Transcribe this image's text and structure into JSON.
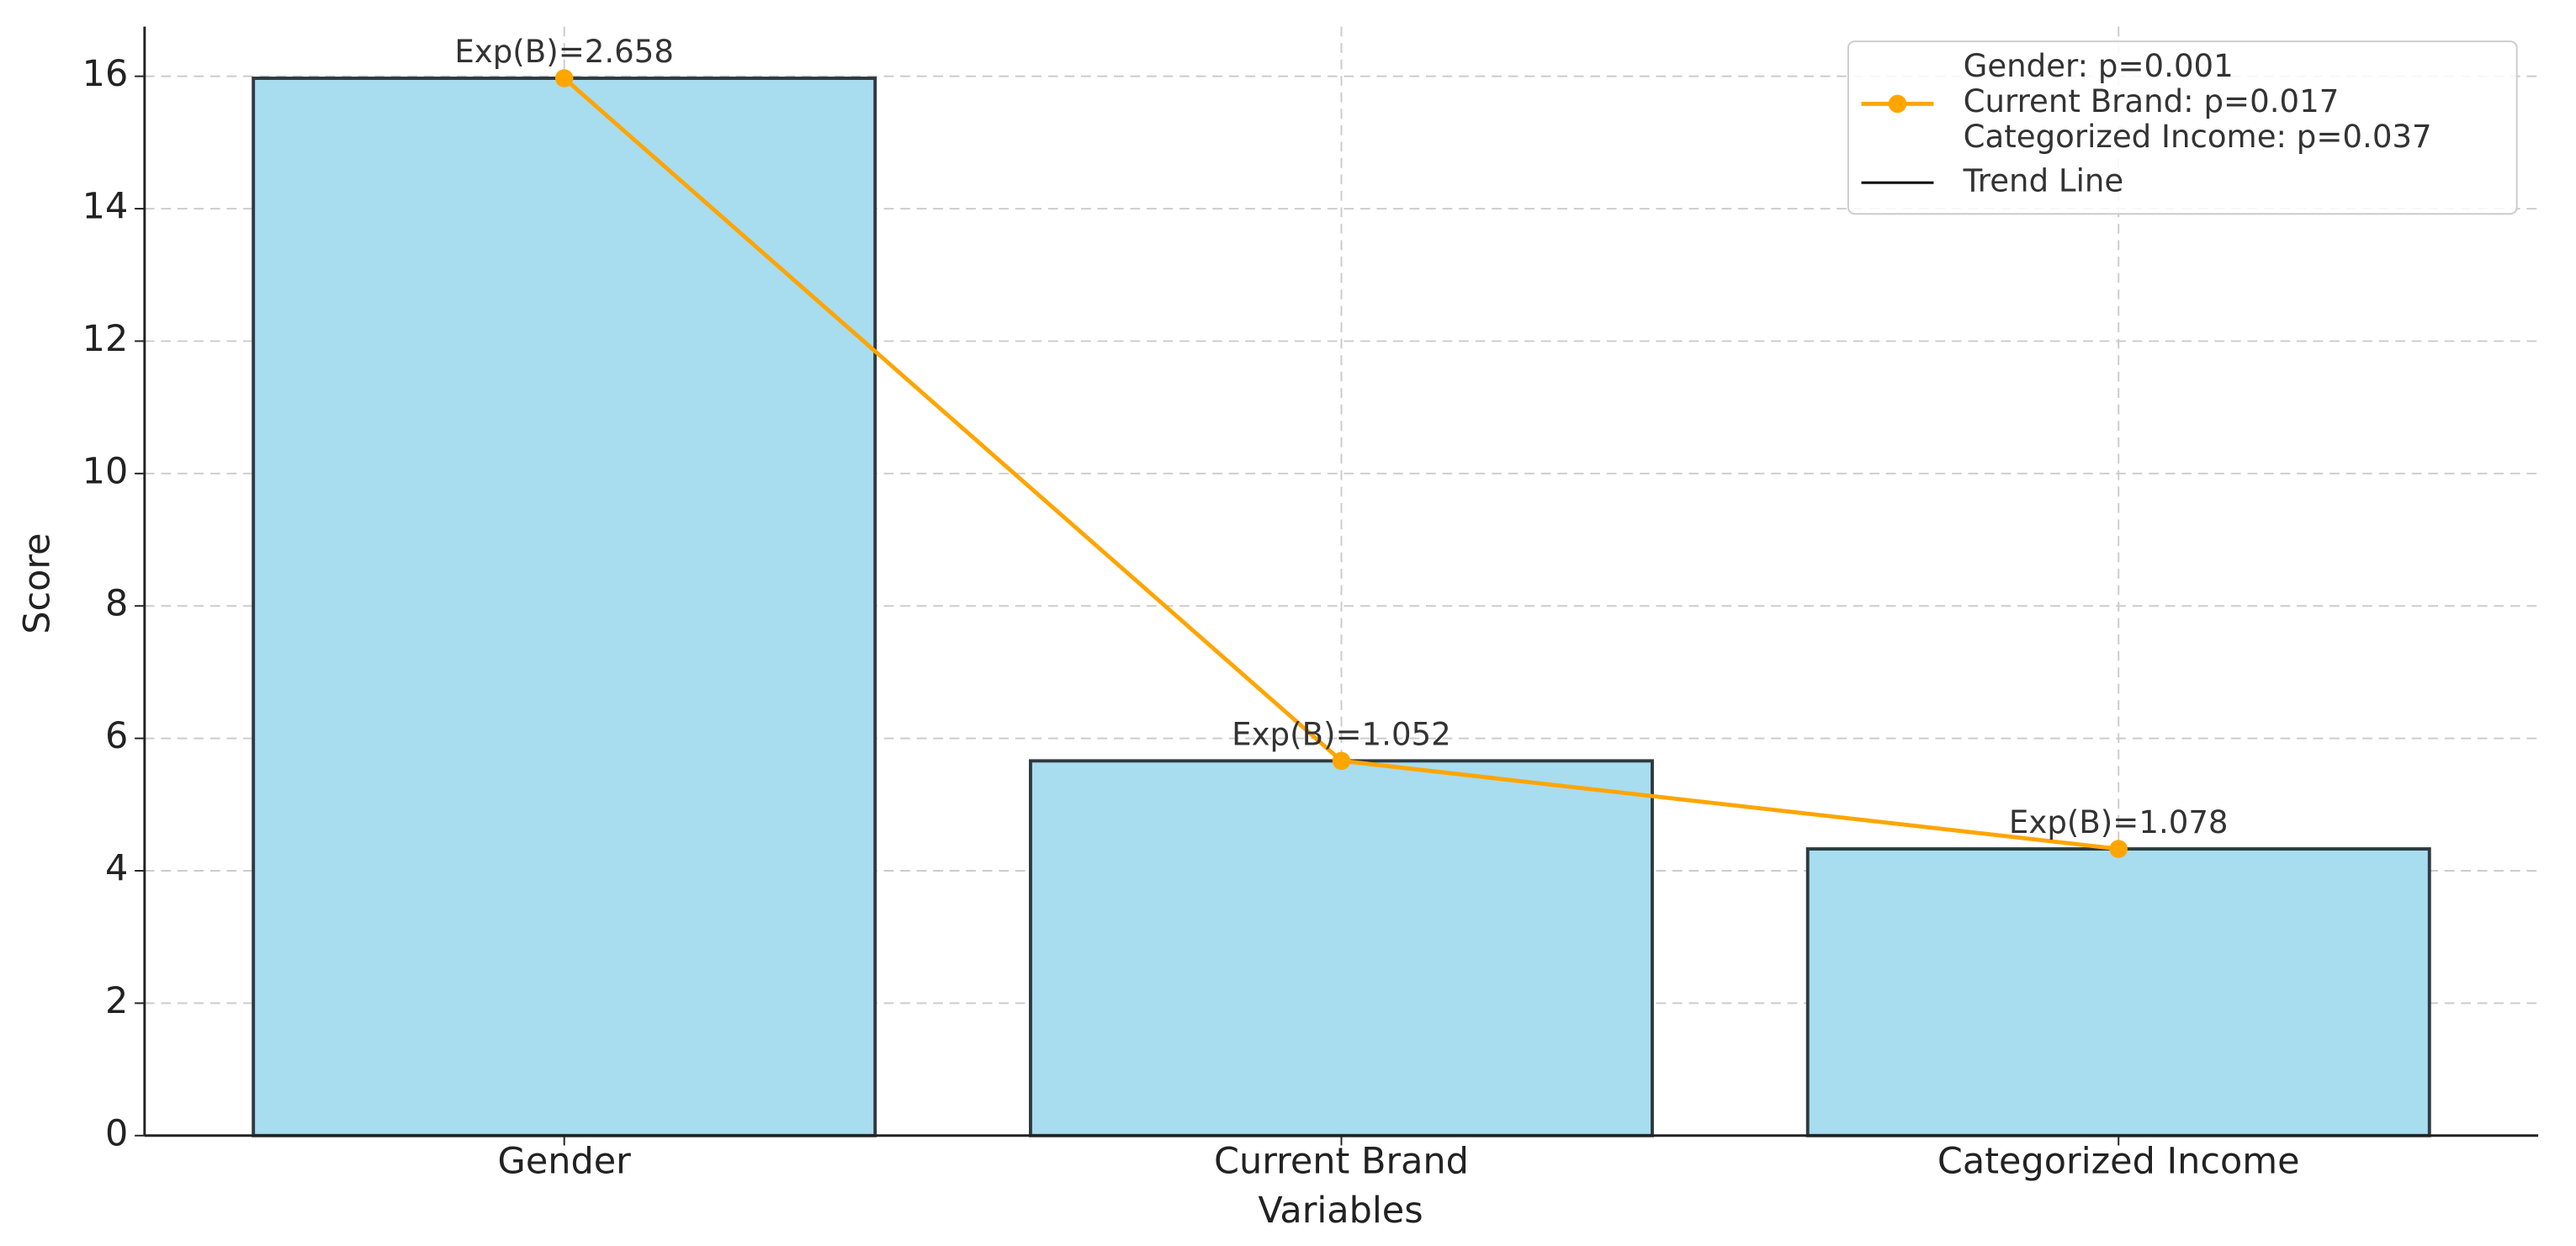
{
  "chart_data": {
    "type": "bar",
    "categories": [
      "Gender",
      "Current Brand",
      "Categorized Income"
    ],
    "values": [
      15.97,
      5.66,
      4.33
    ],
    "color": "#a8dcef",
    "edge_color": "#2f3a40",
    "annotations": [
      "Exp(B)=2.658",
      "Exp(B)=1.052",
      "Exp(B)=1.078"
    ],
    "line": {
      "name": [
        "Gender: p=0.001",
        "Current Brand: p=0.017",
        "Categorized Income: p=0.037"
      ],
      "color": "#ffa500",
      "values": [
        15.97,
        5.66,
        4.33
      ]
    },
    "trend_legend": {
      "name": "Trend Line",
      "color": "#000000"
    },
    "xlabel": "Variables",
    "ylabel": "Score",
    "ylim": [
      0,
      16.75
    ],
    "yticks": [
      0,
      2,
      4,
      6,
      8,
      10,
      12,
      14,
      16
    ],
    "grid": true,
    "legend": "upper right"
  }
}
